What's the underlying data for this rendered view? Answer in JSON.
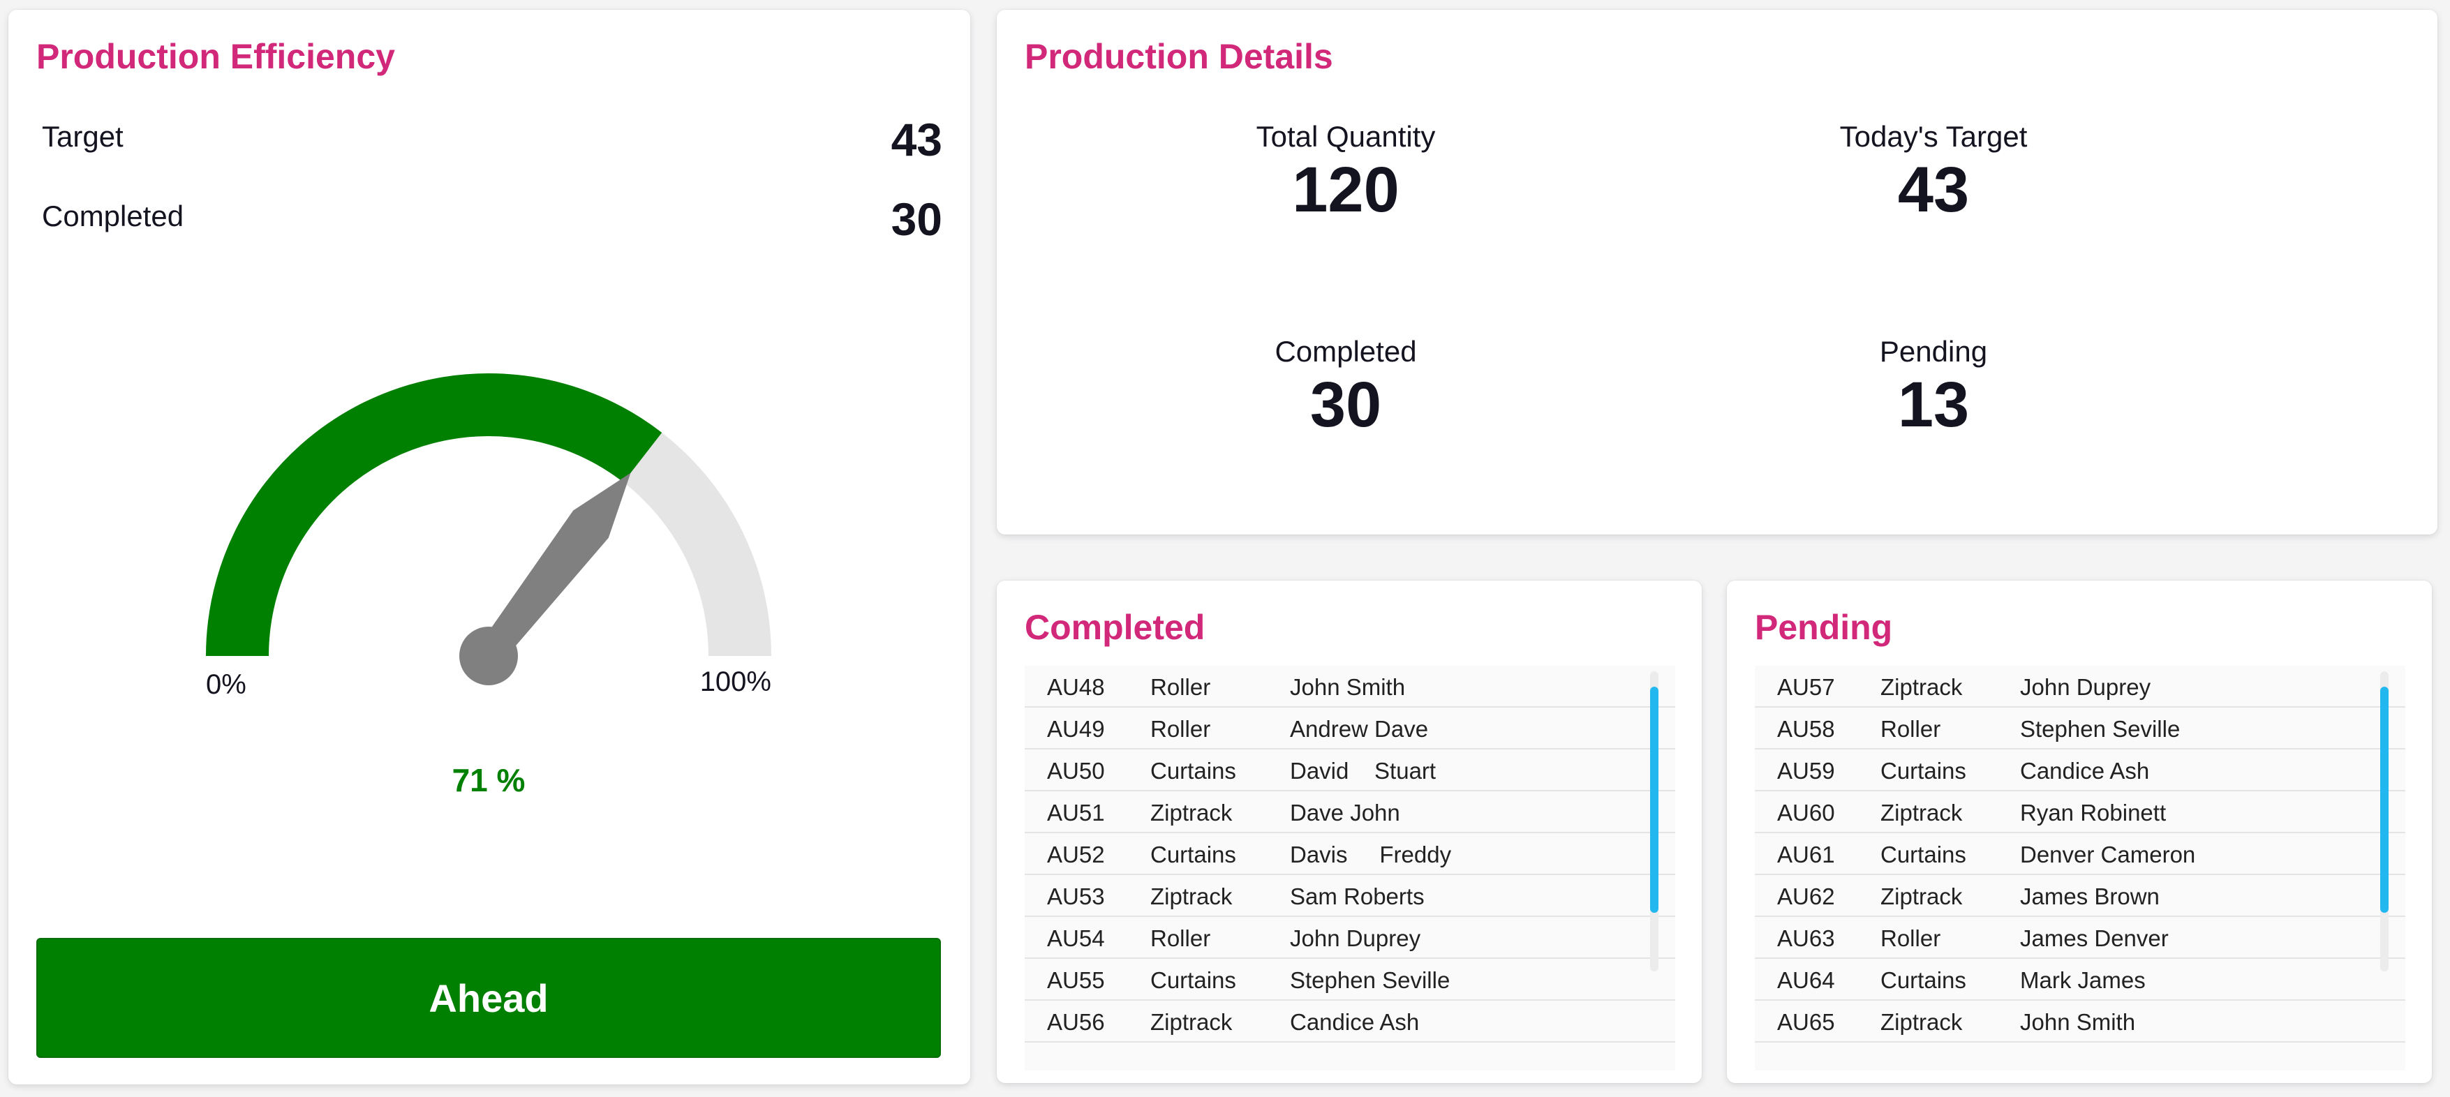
{
  "efficiency": {
    "title": "Production Efficiency",
    "target_label": "Target",
    "target_value": "43",
    "completed_label": "Completed",
    "completed_value": "30",
    "gauge": {
      "value_percent": 71,
      "min_label": "0%",
      "max_label": "100%",
      "readout": "71 %"
    },
    "status_label": "Ahead"
  },
  "details": {
    "title": "Production Details",
    "total_quantity_label": "Total Quantity",
    "total_quantity_value": "120",
    "todays_target_label": "Today's Target",
    "todays_target_value": "43",
    "completed_label": "Completed",
    "completed_value": "30",
    "pending_label": "Pending",
    "pending_value": "13"
  },
  "completed_list": {
    "title": "Completed",
    "rows": [
      {
        "id": "AU48",
        "type": "Roller",
        "name": "John Smith"
      },
      {
        "id": "AU49",
        "type": "Roller",
        "name": "Andrew Dave"
      },
      {
        "id": "AU50",
        "type": "Curtains",
        "name": "David    Stuart"
      },
      {
        "id": "AU51",
        "type": "Ziptrack",
        "name": "Dave John"
      },
      {
        "id": "AU52",
        "type": "Curtains",
        "name": "Davis     Freddy"
      },
      {
        "id": "AU53",
        "type": "Ziptrack",
        "name": "Sam Roberts"
      },
      {
        "id": "AU54",
        "type": "Roller",
        "name": "John Duprey"
      },
      {
        "id": "AU55",
        "type": "Curtains",
        "name": "Stephen Seville"
      },
      {
        "id": "AU56",
        "type": "Ziptrack",
        "name": "Candice Ash"
      }
    ]
  },
  "pending_list": {
    "title": "Pending",
    "rows": [
      {
        "id": "AU57",
        "type": "Ziptrack",
        "name": "John Duprey"
      },
      {
        "id": "AU58",
        "type": "Roller",
        "name": "Stephen Seville"
      },
      {
        "id": "AU59",
        "type": "Curtains",
        "name": "Candice Ash"
      },
      {
        "id": "AU60",
        "type": "Ziptrack",
        "name": "Ryan Robinett"
      },
      {
        "id": "AU61",
        "type": "Curtains",
        "name": "Denver Cameron"
      },
      {
        "id": "AU62",
        "type": "Ziptrack",
        "name": "James Brown"
      },
      {
        "id": "AU63",
        "type": "Roller",
        "name": "James Denver"
      },
      {
        "id": "AU64",
        "type": "Curtains",
        "name": "Mark James"
      },
      {
        "id": "AU65",
        "type": "Ziptrack",
        "name": "John Smith"
      }
    ]
  },
  "colors": {
    "accent": "#d1287a",
    "gauge_fill": "#008000",
    "gauge_track": "#e5e5e5",
    "needle": "#808080",
    "status_ahead": "#008000",
    "scrollbar": "#22b8ef"
  }
}
